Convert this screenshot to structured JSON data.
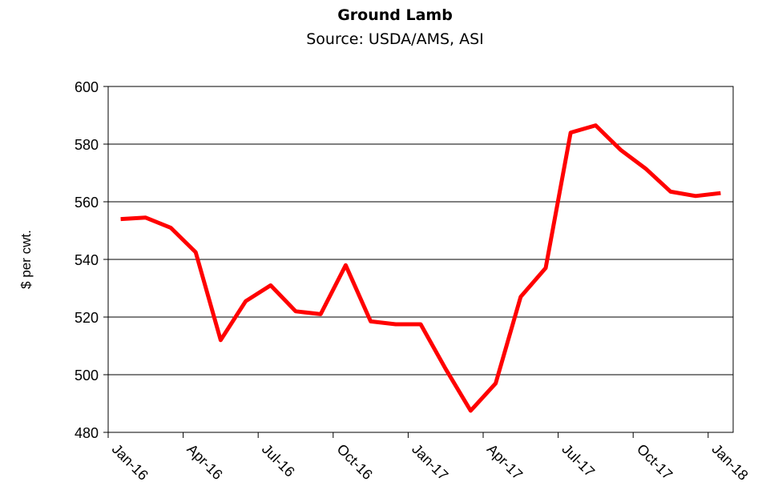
{
  "chart_data": {
    "type": "line",
    "title": "Ground Lamb",
    "subtitle": "Source: USDA/AMS, ASI",
    "y_label": "$ per cwt.",
    "categories": [
      "Jan-16",
      null,
      null,
      "Apr-16",
      null,
      null,
      "Jul-16",
      null,
      null,
      "Oct-16",
      null,
      null,
      "Jan-17",
      null,
      null,
      "Apr-17",
      null,
      null,
      "Jul-17",
      null,
      null,
      "Oct-17",
      null,
      null,
      "Jan-18"
    ],
    "series": [
      {
        "name": "Ground Lamb",
        "color": "#ff0000",
        "values": [
          554,
          554.5,
          551,
          542.5,
          512,
          525.5,
          531,
          522,
          521,
          538,
          518.5,
          517.5,
          517.5,
          502,
          487.5,
          497,
          527,
          537,
          584,
          586.5,
          578,
          571.5,
          563.5,
          562,
          563
        ]
      }
    ],
    "ylim": [
      480,
      600
    ],
    "yticks": [
      480,
      500,
      520,
      540,
      560,
      580,
      600
    ],
    "grid": true
  }
}
